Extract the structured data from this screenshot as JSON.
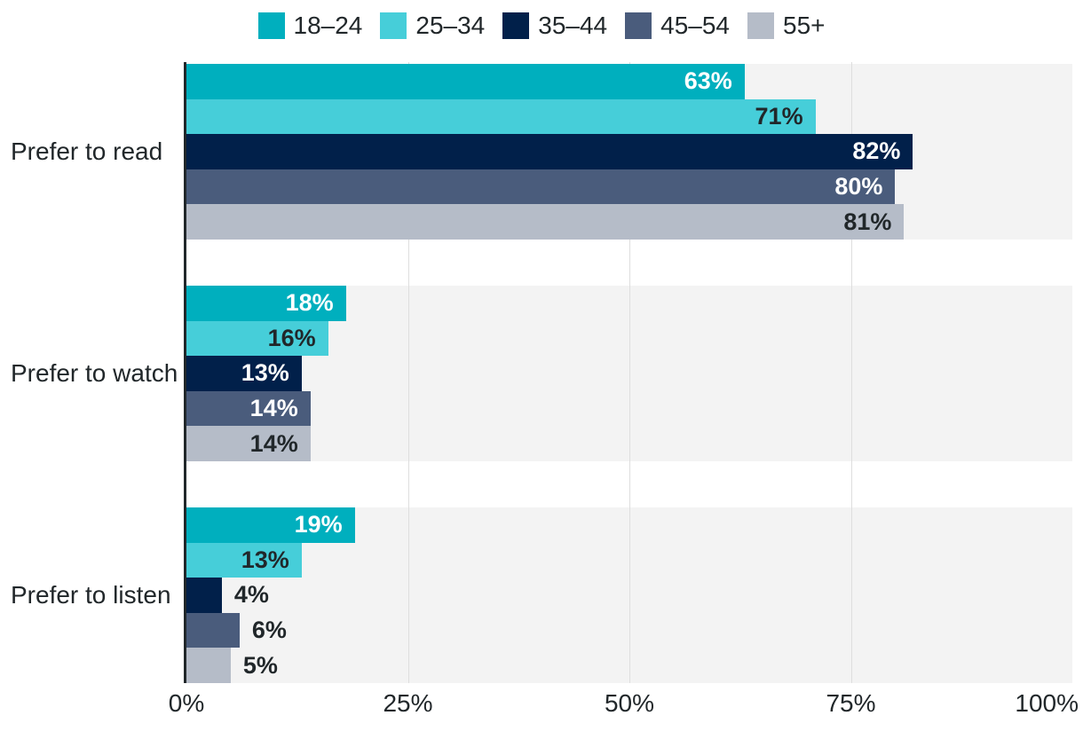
{
  "chart_data": {
    "type": "bar",
    "orientation": "horizontal",
    "categories": [
      "Prefer to read",
      "Prefer to watch",
      "Prefer to listen"
    ],
    "series": [
      {
        "name": "18–24",
        "color": "#00afbe",
        "label_color": "#ffffff",
        "values": [
          63,
          18,
          19
        ]
      },
      {
        "name": "25–34",
        "color": "#46ced9",
        "label_color": "#21272a",
        "values": [
          71,
          16,
          13
        ]
      },
      {
        "name": "35–44",
        "color": "#01204a",
        "label_color": "#ffffff",
        "values": [
          82,
          13,
          4
        ]
      },
      {
        "name": "45–54",
        "color": "#4a5c7c",
        "label_color": "#ffffff",
        "values": [
          80,
          14,
          6
        ]
      },
      {
        "name": "55+",
        "color": "#b5bcc8",
        "label_color": "#21272a",
        "values": [
          81,
          14,
          5
        ]
      }
    ],
    "value_labels": [
      [
        "63%",
        "71%",
        "82%",
        "80%",
        "81%"
      ],
      [
        "18%",
        "16%",
        "13%",
        "14%",
        "14%"
      ],
      [
        "19%",
        "13%",
        "4%",
        "6%",
        "5%"
      ]
    ],
    "value_suffix": "%",
    "x_ticks": [
      "0%",
      "25%",
      "50%",
      "75%",
      "100%"
    ],
    "x_tick_values": [
      0,
      25,
      50,
      75,
      100
    ],
    "xlim": [
      0,
      100
    ],
    "gridlines_at": [
      25,
      50,
      75
    ],
    "legend_position": "top",
    "grid": "vertical",
    "outside_label_threshold": 7,
    "colors": {
      "band_background": "#f3f3f3",
      "gridline": "#dedede",
      "axis_line": "#21272a",
      "outside_label_text": "#21272a",
      "tick_text": "#21272a"
    }
  }
}
